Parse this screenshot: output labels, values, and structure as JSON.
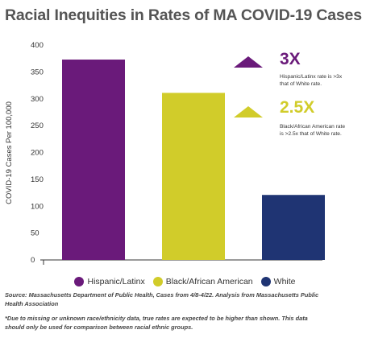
{
  "title": "Racial Inequities in Rates of MA COVID-19 Cases",
  "chart_data": {
    "type": "bar",
    "categories": [
      "Hispanic/Latinx",
      "Black/African American",
      "White"
    ],
    "values": [
      373,
      311,
      121
    ],
    "colors": [
      "#6a1a7a",
      "#d1cc2a",
      "#1f3473"
    ],
    "ylabel": "COVID-19 Cases Per 100,000",
    "ylim": [
      0,
      400
    ],
    "yticks": [
      "0",
      "50",
      "100",
      "150",
      "200",
      "250",
      "300",
      "350",
      "400"
    ],
    "grid": false,
    "legend": "bottom"
  },
  "annotations": [
    {
      "big": "3X",
      "note_line1": "Hispanic/Latinx rate is  >3x",
      "note_line2": "that of White rate.",
      "color": "#6a1a7a",
      "arrow_color": "#6a1a7a"
    },
    {
      "big": "2.5X",
      "note_line1": "Black/African American rate",
      "note_line2": "is >2.5x that of White rate.",
      "color": "#d1cc2a",
      "arrow_color": "#d1cc2a"
    }
  ],
  "source_line1": "Source: Massachusetts Department of Public Health, Cases from 4/8-4/22. Analysis from Massachusetts Public",
  "source_line2": "Health Association",
  "footnote_line1": "*Due to missing or unknown race/ethnicity data, true rates are expected to be higher than shown. This data",
  "footnote_line2": "should only be used for comparison between racial ethnic groups."
}
